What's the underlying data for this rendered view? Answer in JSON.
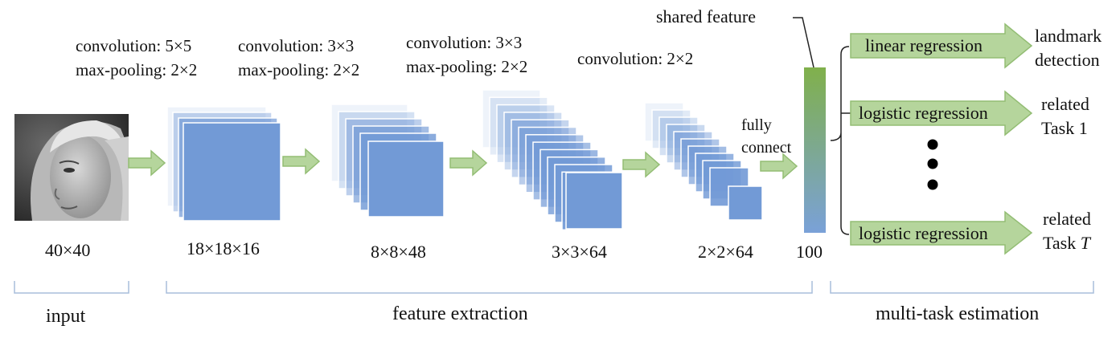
{
  "input": {
    "size_label": "40×40",
    "image_subject": "grayscale face photograph"
  },
  "layers": [
    {
      "conv": "convolution: 5×5",
      "pool": "max-pooling: 2×2",
      "size": "18×18×16"
    },
    {
      "conv": "convolution: 3×3",
      "pool": "max-pooling: 2×2",
      "size": "8×8×48"
    },
    {
      "conv": "convolution: 3×3",
      "pool": "max-pooling: 2×2",
      "size": "3×3×64"
    },
    {
      "conv": "convolution: 2×2",
      "pool": "",
      "size": "2×2×64"
    }
  ],
  "fc": {
    "label_line1": "fully",
    "label_line2": "connect",
    "shared_label": "shared feature",
    "size": "100"
  },
  "tasks": [
    {
      "method": "linear regression",
      "line1": "landmark",
      "line2": "detection",
      "italic": ""
    },
    {
      "method": "logistic regression",
      "line1": "related",
      "line2": "Task 1",
      "italic": ""
    },
    {
      "method": "logistic regression",
      "line1": "related",
      "line2": "Task ",
      "italic": "T"
    }
  ],
  "sections": {
    "input": "input",
    "feature_extraction": "feature extraction",
    "multi_task": "multi-task estimation"
  },
  "colors": {
    "block": "#729ad6",
    "arrow_fill": "#b5d59c",
    "arrow_stroke": "#93bd74",
    "fc_top": "#80b04b",
    "fc_bottom": "#7aa1d8",
    "bracket": "#a8bddb"
  }
}
